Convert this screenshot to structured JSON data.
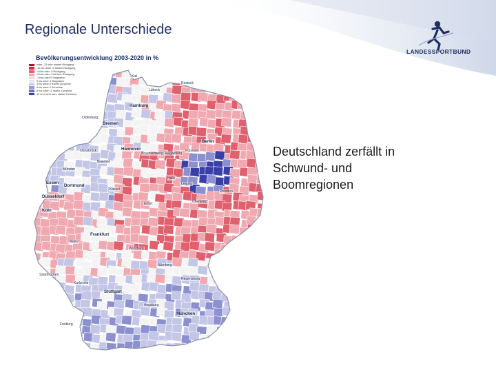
{
  "slide": {
    "title": "Regionale Unterschiede",
    "callout_lines": [
      "Deutschland zerfällt in",
      "Schwund- und",
      "Boomregionen"
    ]
  },
  "logo": {
    "text": "LANDESSPORTBUND",
    "icon": "runner-logo-icon"
  },
  "map": {
    "title": "Bevölkerungsentwicklung 2003-2020 in %",
    "colors": {
      "strong_decline": "#c8102e",
      "decline": "#e0606d",
      "slight_decline": "#f0a9b0",
      "stable": "#f4f4f4",
      "slight_growth": "#c3c6e6",
      "growth": "#8c90cf",
      "strong_growth": "#3a3fa8",
      "outline": "#9aa0b8"
    },
    "legend": [
      {
        "label": "unter -12   sehr starker Rückgang",
        "color": "#b40f26"
      },
      {
        "label": "-12 bis unter -9   starker Rückgang",
        "color": "#d42a3c"
      },
      {
        "label": "-9 bis unter -6   Rückgang",
        "color": "#e4606c"
      },
      {
        "label": "-6 bis unter -3   leichter Rückgang",
        "color": "#f0a2aa"
      },
      {
        "label": "-3 bis unter 0   Stagnation",
        "color": "#f6d6d9"
      },
      {
        "label": "0 bis unter 3   Stagnation",
        "color": "#e6e7f4"
      },
      {
        "label": "3 bis unter 6   leichte Zunahme",
        "color": "#c3c6e6"
      },
      {
        "label": "6 bis unter 9   Zunahme",
        "color": "#9a9ed6"
      },
      {
        "label": "9 bis unter 12   starke Zunahme",
        "color": "#6a6fc0"
      },
      {
        "label": "12 und mehr   sehr starke Zunahme",
        "color": "#3a3fa8"
      }
    ],
    "cities": [
      {
        "name": "Kiel",
        "big": false
      },
      {
        "name": "Lübeck",
        "big": false
      },
      {
        "name": "Rostock",
        "big": false
      },
      {
        "name": "Hamburg",
        "big": true
      },
      {
        "name": "Bremen",
        "big": true
      },
      {
        "name": "Oldenburg",
        "big": false
      },
      {
        "name": "Hannover",
        "big": true
      },
      {
        "name": "Braunschweig",
        "big": false
      },
      {
        "name": "Magdeburg",
        "big": false
      },
      {
        "name": "Berlin",
        "big": true
      },
      {
        "name": "Potsdam",
        "big": false
      },
      {
        "name": "Bielefeld",
        "big": false
      },
      {
        "name": "Osnabrück",
        "big": false
      },
      {
        "name": "Münster",
        "big": false
      },
      {
        "name": "Dortmund",
        "big": true
      },
      {
        "name": "Essen",
        "big": true
      },
      {
        "name": "Düsseldorf",
        "big": true
      },
      {
        "name": "Köln",
        "big": true
      },
      {
        "name": "Kassel",
        "big": false
      },
      {
        "name": "Halle",
        "big": false
      },
      {
        "name": "Leipzig",
        "big": false
      },
      {
        "name": "Dresden",
        "big": false
      },
      {
        "name": "Erfurt",
        "big": false
      },
      {
        "name": "Chemnitz",
        "big": false
      },
      {
        "name": "Frankfurt",
        "big": true
      },
      {
        "name": "Mainz",
        "big": false
      },
      {
        "name": "Würzburg",
        "big": false
      },
      {
        "name": "Nürnberg",
        "big": false
      },
      {
        "name": "Saarbrücken",
        "big": false
      },
      {
        "name": "Karlsruhe",
        "big": false
      },
      {
        "name": "Stuttgart",
        "big": true
      },
      {
        "name": "Augsburg",
        "big": false
      },
      {
        "name": "München",
        "big": true
      },
      {
        "name": "Freiburg",
        "big": false
      },
      {
        "name": "Regensburg",
        "big": false
      }
    ]
  }
}
